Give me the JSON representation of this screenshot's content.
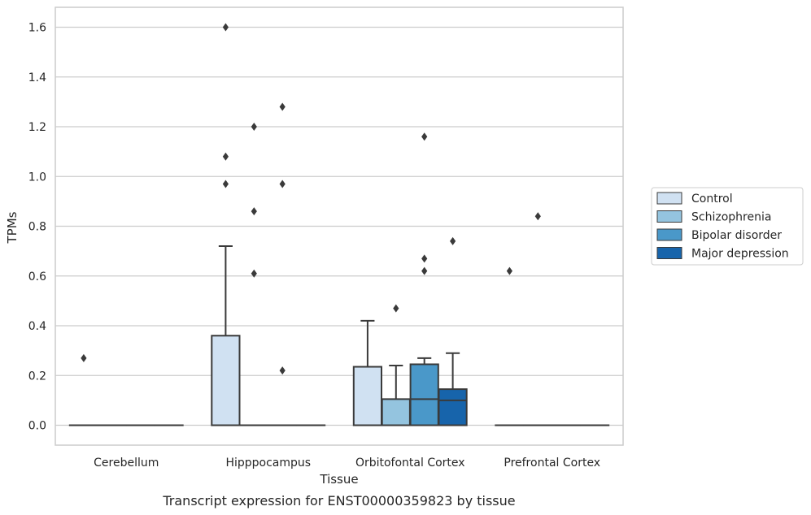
{
  "chart_data": {
    "type": "box",
    "xlabel": "Tissue",
    "ylabel": "TPMs",
    "caption": "Transcript expression for ENST00000359823 by tissue",
    "ylim": [
      -0.08,
      1.68
    ],
    "yticks": [
      0.0,
      0.2,
      0.4,
      0.6,
      0.8,
      1.0,
      1.2,
      1.4,
      1.6
    ],
    "ytick_labels": [
      "0.0",
      "0.2",
      "0.4",
      "0.6",
      "0.8",
      "1.0",
      "1.2",
      "1.4",
      "1.6"
    ],
    "grid": "horizontal",
    "legend_position": "outside-right",
    "categories": [
      "Cerebellum",
      "Hipppocampus",
      "Orbitofontal Cortex",
      "Prefrontal Cortex"
    ],
    "series": [
      {
        "name": "Control",
        "color": "#d0e1f2",
        "boxes": [
          {
            "q1": 0,
            "median": 0,
            "q3": 0,
            "whisker_low": 0,
            "whisker_high": 0,
            "outliers": [
              0.27
            ]
          },
          {
            "q1": 0,
            "median": 0,
            "q3": 0.36,
            "whisker_low": 0,
            "whisker_high": 0.72,
            "outliers": [
              0.97,
              1.08,
              1.6
            ]
          },
          {
            "q1": 0,
            "median": 0,
            "q3": 0.235,
            "whisker_low": 0,
            "whisker_high": 0.42,
            "outliers": []
          },
          {
            "q1": 0,
            "median": 0,
            "q3": 0,
            "whisker_low": 0,
            "whisker_high": 0,
            "outliers": [
              0.62
            ]
          }
        ]
      },
      {
        "name": "Schizophrenia",
        "color": "#94c4df",
        "boxes": [
          {
            "q1": 0,
            "median": 0,
            "q3": 0,
            "whisker_low": 0,
            "whisker_high": 0,
            "outliers": []
          },
          {
            "q1": 0,
            "median": 0,
            "q3": 0,
            "whisker_low": 0,
            "whisker_high": 0,
            "outliers": [
              0.61,
              0.86,
              1.2
            ]
          },
          {
            "q1": 0,
            "median": 0,
            "q3": 0.105,
            "whisker_low": 0,
            "whisker_high": 0.24,
            "outliers": [
              0.47
            ]
          },
          {
            "q1": 0,
            "median": 0,
            "q3": 0,
            "whisker_low": 0,
            "whisker_high": 0,
            "outliers": [
              0.84
            ]
          }
        ]
      },
      {
        "name": "Bipolar disorder",
        "color": "#4a98c9",
        "boxes": [
          {
            "q1": 0,
            "median": 0,
            "q3": 0,
            "whisker_low": 0,
            "whisker_high": 0,
            "outliers": []
          },
          {
            "q1": 0,
            "median": 0,
            "q3": 0,
            "whisker_low": 0,
            "whisker_high": 0,
            "outliers": [
              0.22,
              0.97,
              1.28
            ]
          },
          {
            "q1": 0,
            "median": 0.105,
            "q3": 0.245,
            "whisker_low": 0,
            "whisker_high": 0.27,
            "outliers": [
              0.62,
              0.67,
              1.16
            ]
          },
          {
            "q1": 0,
            "median": 0,
            "q3": 0,
            "whisker_low": 0,
            "whisker_high": 0,
            "outliers": []
          }
        ]
      },
      {
        "name": "Major depression",
        "color": "#1764ab",
        "boxes": [
          {
            "q1": 0,
            "median": 0,
            "q3": 0,
            "whisker_low": 0,
            "whisker_high": 0,
            "outliers": []
          },
          {
            "q1": 0,
            "median": 0,
            "q3": 0,
            "whisker_low": 0,
            "whisker_high": 0,
            "outliers": []
          },
          {
            "q1": 0,
            "median": 0.1,
            "q3": 0.145,
            "whisker_low": 0,
            "whisker_high": 0.29,
            "outliers": [
              0.74
            ]
          },
          {
            "q1": 0,
            "median": 0,
            "q3": 0,
            "whisker_low": 0,
            "whisker_high": 0,
            "outliers": []
          }
        ]
      }
    ]
  }
}
